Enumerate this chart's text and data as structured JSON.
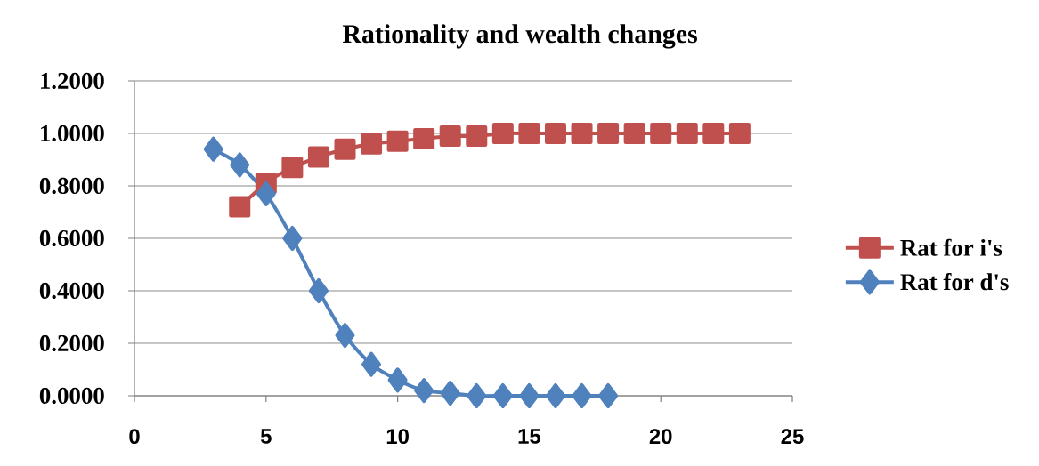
{
  "chart_data": {
    "type": "line",
    "title": "Rationality and wealth changes",
    "xlim": [
      0,
      25
    ],
    "xticks": [
      0,
      5,
      10,
      15,
      20,
      25
    ],
    "ylim": [
      0,
      1.2
    ],
    "yticks": [
      {
        "value": 0,
        "label": "0.0000"
      },
      {
        "value": 0.2,
        "label": "0.2000"
      },
      {
        "value": 0.4,
        "label": "0.4000"
      },
      {
        "value": 0.6,
        "label": "0.6000"
      },
      {
        "value": 0.8,
        "label": "0.8000"
      },
      {
        "value": 1.0,
        "label": "1.0000"
      },
      {
        "value": 1.2,
        "label": "1.2000"
      }
    ],
    "grid": "y",
    "legend": "right",
    "line_style": "solid",
    "series": [
      {
        "name": "Rat for i's",
        "color": "#c0504d",
        "marker": "square",
        "x": [
          4,
          5,
          6,
          7,
          8,
          9,
          10,
          11,
          12,
          13,
          14,
          15,
          16,
          17,
          18,
          19,
          20,
          21,
          22,
          23
        ],
        "values": [
          0.72,
          0.81,
          0.87,
          0.91,
          0.94,
          0.96,
          0.97,
          0.98,
          0.99,
          0.99,
          1.0,
          1.0,
          1.0,
          1.0,
          1.0,
          1.0,
          1.0,
          1.0,
          1.0,
          1.0
        ]
      },
      {
        "name": "Rat for d's",
        "color": "#4f81bd",
        "marker": "diamond",
        "x": [
          3,
          4,
          5,
          6,
          7,
          8,
          9,
          10,
          11,
          12,
          13,
          14,
          15,
          16,
          17,
          18
        ],
        "values": [
          0.94,
          0.88,
          0.77,
          0.6,
          0.4,
          0.23,
          0.12,
          0.06,
          0.02,
          0.01,
          0.0,
          0.0,
          0.0,
          0.0,
          0.0,
          0.0
        ]
      }
    ]
  }
}
